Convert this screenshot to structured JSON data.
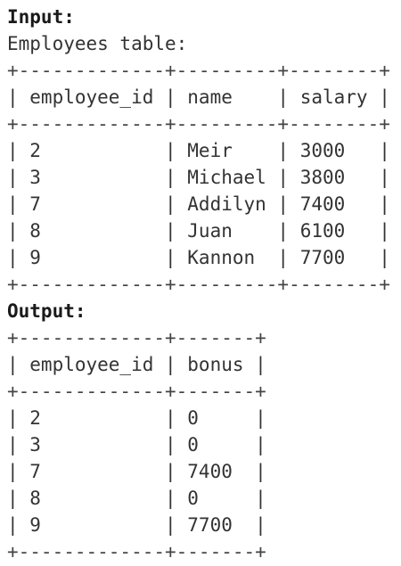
{
  "input_label": "Input:",
  "input_caption": "Employees table:",
  "separator": "|",
  "input_table": {
    "border": "+-------------+---------+--------+",
    "columns": [
      "employee_id",
      "name",
      "salary"
    ],
    "rows": [
      [
        2,
        "Meir",
        3000
      ],
      [
        3,
        "Michael",
        3800
      ],
      [
        7,
        "Addilyn",
        7400
      ],
      [
        8,
        "Juan",
        6100
      ],
      [
        9,
        "Kannon",
        7700
      ]
    ]
  },
  "output_label": "Output:",
  "output_table": {
    "border": "+-------------+-------+",
    "columns": [
      "employee_id",
      "bonus"
    ],
    "rows": [
      [
        2,
        0
      ],
      [
        3,
        0
      ],
      [
        7,
        7400
      ],
      [
        8,
        0
      ],
      [
        9,
        7700
      ]
    ]
  }
}
